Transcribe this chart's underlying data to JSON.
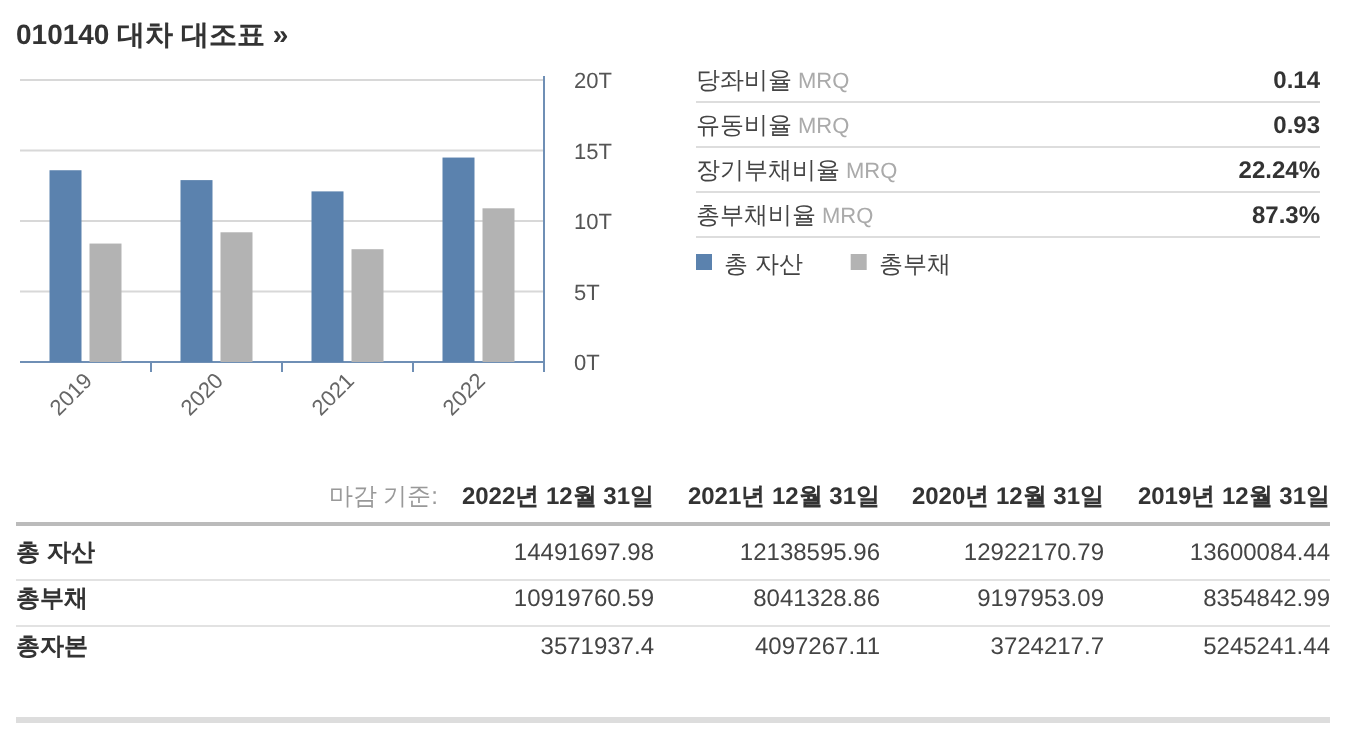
{
  "chart_data": [
    {
      "type": "bar",
      "title": "010140 대차 대조표 »",
      "categories": [
        "2019",
        "2020",
        "2021",
        "2022"
      ],
      "series": [
        {
          "name": "총 자산",
          "color": "#5b82ae",
          "values": [
            13.6,
            12.9,
            12.1,
            14.5
          ]
        },
        {
          "name": "총부채",
          "color": "#b3b3b3",
          "values": [
            8.4,
            9.2,
            8.0,
            10.9
          ]
        }
      ],
      "ylim": [
        0,
        20
      ],
      "yticks": [
        {
          "value": 0,
          "label": "0T"
        },
        {
          "value": 5,
          "label": "5T"
        },
        {
          "value": 10,
          "label": "10T"
        },
        {
          "value": 15,
          "label": "15T"
        },
        {
          "value": 20,
          "label": "20T"
        }
      ],
      "grid": "y",
      "legend": "right"
    },
    {
      "type": "other",
      "categories": [
        "당좌비율 MRQ",
        "유동비율 MRQ",
        "장기부채비율 MRQ",
        "총부채비율 MRQ"
      ],
      "value_labels": [
        "0.14",
        "0.93",
        "22.24%",
        "87.3%"
      ]
    },
    {
      "type": "other",
      "categories": [
        "2022년 12월 31일",
        "2021년 12월 31일",
        "2020년 12월 31일",
        "2019년 12월 31일"
      ],
      "series": [
        {
          "name": "총 자산",
          "values": [
            14491697.98,
            12138595.96,
            12922170.79,
            13600084.44
          ]
        },
        {
          "name": "총부채",
          "values": [
            10919760.59,
            8041328.86,
            9197953.09,
            8354842.99
          ]
        },
        {
          "name": "총자본",
          "values": [
            3571937.4,
            4097267.11,
            3724217.7,
            5245241.44
          ]
        }
      ],
      "annotations": [
        "마감 기준:"
      ],
      "data_labels": true
    }
  ]
}
